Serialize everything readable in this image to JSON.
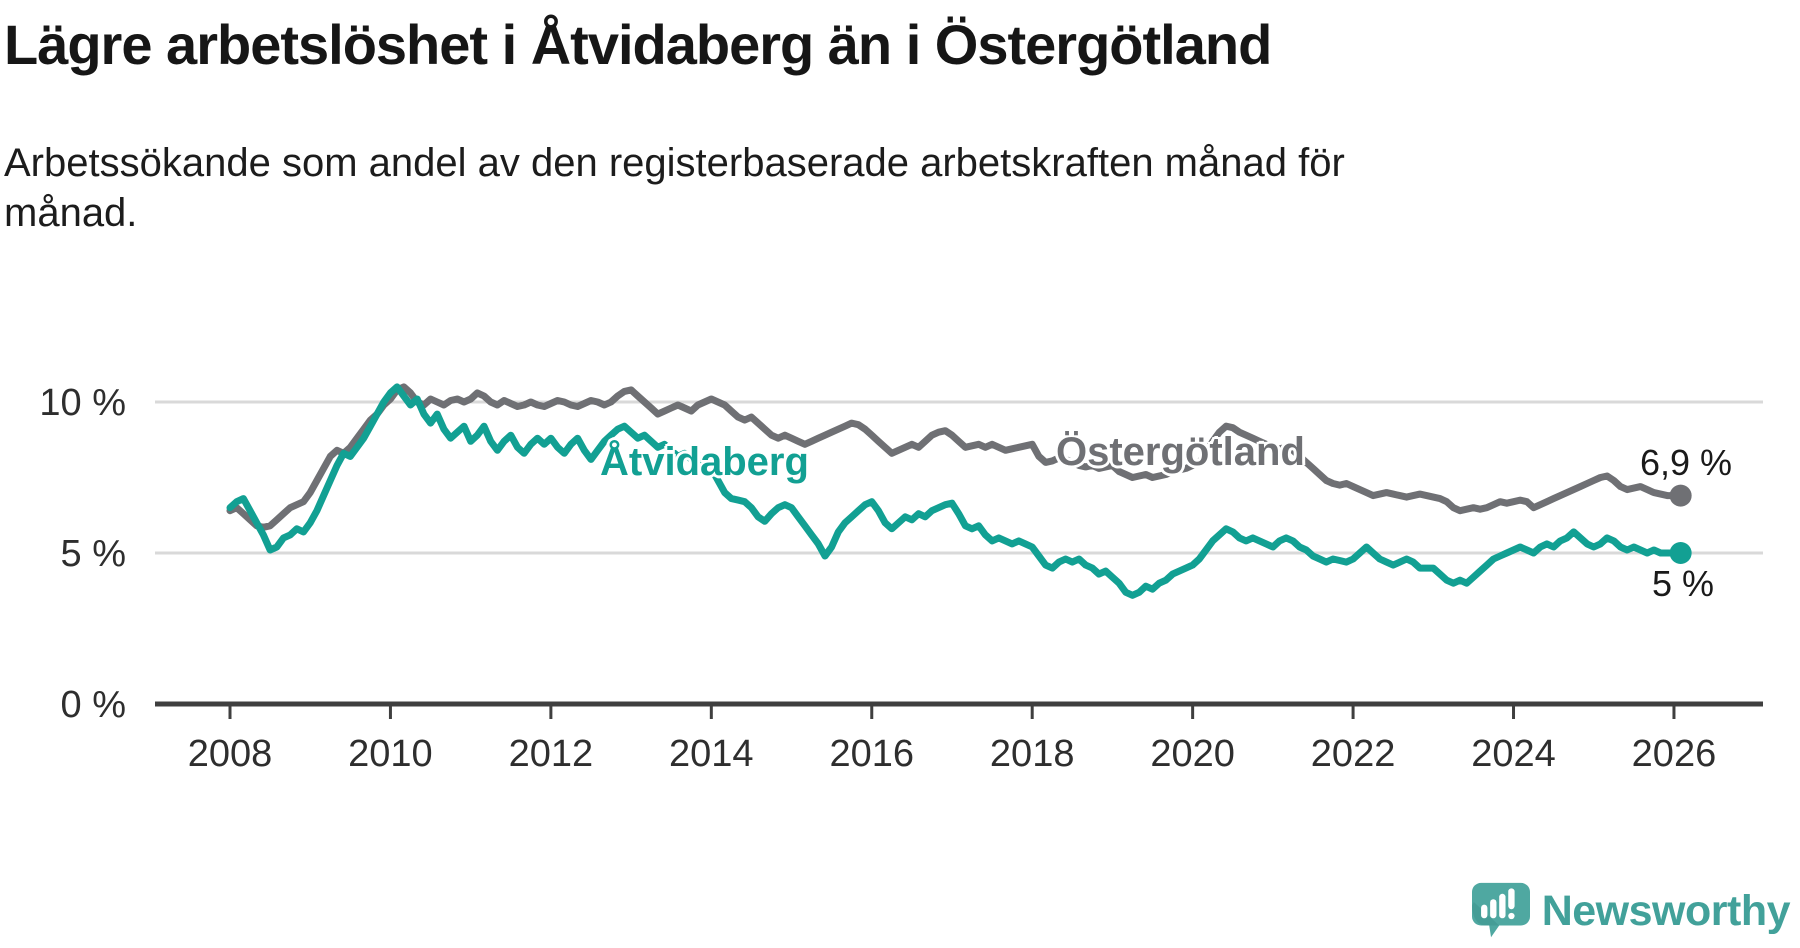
{
  "header": {
    "title": "Lägre arbetslöshet i Åtvidaberg än i Östergötland",
    "subtitle": "Arbetssökande som andel av den registerbaserade arbetskraften månad för månad."
  },
  "chart_data": {
    "type": "line",
    "unit": "%",
    "x_start_year": 2008,
    "x_step_months": 1,
    "x_end_label": "2026",
    "ylim": [
      0,
      11.5
    ],
    "xlim": [
      2007.1,
      2027.1
    ],
    "grid": "horizontal",
    "legend_position": "inline-labels",
    "yticks": [
      {
        "value": 0,
        "label": "0 %"
      },
      {
        "value": 5,
        "label": "5 %"
      },
      {
        "value": 10,
        "label": "10 %"
      }
    ],
    "xticks": [
      {
        "year": 2008,
        "label": "2008"
      },
      {
        "year": 2010,
        "label": "2010"
      },
      {
        "year": 2012,
        "label": "2012"
      },
      {
        "year": 2014,
        "label": "2014"
      },
      {
        "year": 2016,
        "label": "2016"
      },
      {
        "year": 2018,
        "label": "2018"
      },
      {
        "year": 2020,
        "label": "2020"
      },
      {
        "year": 2022,
        "label": "2022"
      },
      {
        "year": 2024,
        "label": "2024"
      },
      {
        "year": 2026,
        "label": "2026"
      }
    ],
    "series": [
      {
        "name": "Östergötland",
        "color": "#6f7074",
        "end_label": "6,9 %",
        "end_value": 6.9,
        "values": [
          6.4,
          6.5,
          6.3,
          6.1,
          5.9,
          5.85,
          5.9,
          6.1,
          6.3,
          6.5,
          6.6,
          6.7,
          7.0,
          7.4,
          7.8,
          8.2,
          8.4,
          8.3,
          8.5,
          8.8,
          9.1,
          9.4,
          9.6,
          9.9,
          10.1,
          10.4,
          10.5,
          10.3,
          10.0,
          9.9,
          10.1,
          10.0,
          9.9,
          10.05,
          10.1,
          10.0,
          10.1,
          10.3,
          10.2,
          10.0,
          9.9,
          10.05,
          9.95,
          9.85,
          9.9,
          10.0,
          9.9,
          9.85,
          9.95,
          10.05,
          10.0,
          9.9,
          9.85,
          9.95,
          10.05,
          10.0,
          9.9,
          10.0,
          10.2,
          10.35,
          10.4,
          10.2,
          10.0,
          9.8,
          9.6,
          9.7,
          9.8,
          9.9,
          9.8,
          9.7,
          9.9,
          10.0,
          10.1,
          10.0,
          9.9,
          9.7,
          9.5,
          9.4,
          9.5,
          9.3,
          9.1,
          8.9,
          8.8,
          8.9,
          8.8,
          8.7,
          8.6,
          8.7,
          8.8,
          8.9,
          9.0,
          9.1,
          9.2,
          9.3,
          9.25,
          9.1,
          8.9,
          8.7,
          8.5,
          8.3,
          8.4,
          8.5,
          8.6,
          8.5,
          8.7,
          8.9,
          9.0,
          9.05,
          8.9,
          8.7,
          8.5,
          8.55,
          8.6,
          8.5,
          8.6,
          8.5,
          8.4,
          8.45,
          8.5,
          8.55,
          8.6,
          8.2,
          8.0,
          8.05,
          8.15,
          8.1,
          8.0,
          7.9,
          7.85,
          7.9,
          7.8,
          7.85,
          7.9,
          7.7,
          7.6,
          7.5,
          7.55,
          7.6,
          7.5,
          7.55,
          7.6,
          7.7,
          7.75,
          7.8,
          7.9,
          8.0,
          8.3,
          8.7,
          9.0,
          9.2,
          9.15,
          9.0,
          8.9,
          8.8,
          8.7,
          8.6,
          8.5,
          8.45,
          8.5,
          8.4,
          8.2,
          8.0,
          7.8,
          7.6,
          7.4,
          7.3,
          7.25,
          7.3,
          7.2,
          7.1,
          7.0,
          6.9,
          6.95,
          7.0,
          6.95,
          6.9,
          6.85,
          6.9,
          6.95,
          6.9,
          6.85,
          6.8,
          6.7,
          6.5,
          6.4,
          6.45,
          6.5,
          6.45,
          6.5,
          6.6,
          6.7,
          6.65,
          6.7,
          6.75,
          6.7,
          6.5,
          6.6,
          6.7,
          6.8,
          6.9,
          7.0,
          7.1,
          7.2,
          7.3,
          7.4,
          7.5,
          7.55,
          7.4,
          7.2,
          7.1,
          7.15,
          7.2,
          7.1,
          7.0,
          6.95,
          6.9,
          6.9,
          6.9
        ]
      },
      {
        "name": "Åtvidaberg",
        "color": "#12a093",
        "end_label": "5 %",
        "end_value": 5.0,
        "values": [
          6.5,
          6.7,
          6.8,
          6.4,
          6.0,
          5.6,
          5.1,
          5.2,
          5.5,
          5.6,
          5.8,
          5.7,
          6.0,
          6.4,
          6.9,
          7.4,
          7.9,
          8.3,
          8.2,
          8.5,
          8.8,
          9.2,
          9.6,
          10.0,
          10.3,
          10.5,
          10.2,
          9.9,
          10.1,
          9.6,
          9.3,
          9.6,
          9.1,
          8.8,
          9.0,
          9.2,
          8.7,
          8.9,
          9.2,
          8.7,
          8.4,
          8.7,
          8.9,
          8.5,
          8.3,
          8.6,
          8.8,
          8.6,
          8.8,
          8.5,
          8.3,
          8.6,
          8.8,
          8.4,
          8.1,
          8.4,
          8.7,
          8.9,
          9.1,
          9.2,
          9.0,
          8.8,
          8.9,
          8.7,
          8.5,
          8.6,
          8.4,
          8.2,
          8.3,
          8.1,
          7.9,
          8.0,
          7.8,
          7.4,
          7.0,
          6.8,
          6.75,
          6.7,
          6.5,
          6.2,
          6.05,
          6.3,
          6.5,
          6.6,
          6.5,
          6.2,
          5.9,
          5.6,
          5.3,
          4.9,
          5.2,
          5.7,
          6.0,
          6.2,
          6.4,
          6.6,
          6.7,
          6.4,
          6.0,
          5.8,
          6.0,
          6.2,
          6.1,
          6.3,
          6.2,
          6.4,
          6.5,
          6.6,
          6.65,
          6.3,
          5.9,
          5.8,
          5.9,
          5.6,
          5.4,
          5.5,
          5.4,
          5.3,
          5.4,
          5.3,
          5.2,
          4.9,
          4.6,
          4.5,
          4.7,
          4.8,
          4.7,
          4.8,
          4.6,
          4.5,
          4.3,
          4.4,
          4.2,
          4.0,
          3.7,
          3.6,
          3.7,
          3.9,
          3.8,
          4.0,
          4.1,
          4.3,
          4.4,
          4.5,
          4.6,
          4.8,
          5.1,
          5.4,
          5.6,
          5.8,
          5.7,
          5.5,
          5.4,
          5.5,
          5.4,
          5.3,
          5.2,
          5.4,
          5.5,
          5.4,
          5.2,
          5.1,
          4.9,
          4.8,
          4.7,
          4.8,
          4.75,
          4.7,
          4.8,
          5.0,
          5.2,
          5.0,
          4.8,
          4.7,
          4.6,
          4.7,
          4.8,
          4.7,
          4.5,
          4.5,
          4.5,
          4.3,
          4.1,
          4.0,
          4.1,
          4.0,
          4.2,
          4.4,
          4.6,
          4.8,
          4.9,
          5.0,
          5.1,
          5.2,
          5.1,
          5.0,
          5.2,
          5.3,
          5.2,
          5.4,
          5.5,
          5.7,
          5.5,
          5.3,
          5.2,
          5.3,
          5.5,
          5.4,
          5.2,
          5.1,
          5.2,
          5.1,
          5.0,
          5.1,
          5.0,
          5.0,
          5.0,
          5.0
        ]
      }
    ]
  },
  "footer": {
    "brand": "Newsworthy",
    "brand_color": "#42a19a",
    "icon_color": "#4fa8a1",
    "icon_shade_color": "#3e948e",
    "icon_name": "newsworthy-speech-bubble-barchart-icon"
  },
  "style": {
    "grid_color": "#d9d9d9",
    "axis_color": "#3f3f3f",
    "tick_label_color": "#2e2e2e"
  }
}
